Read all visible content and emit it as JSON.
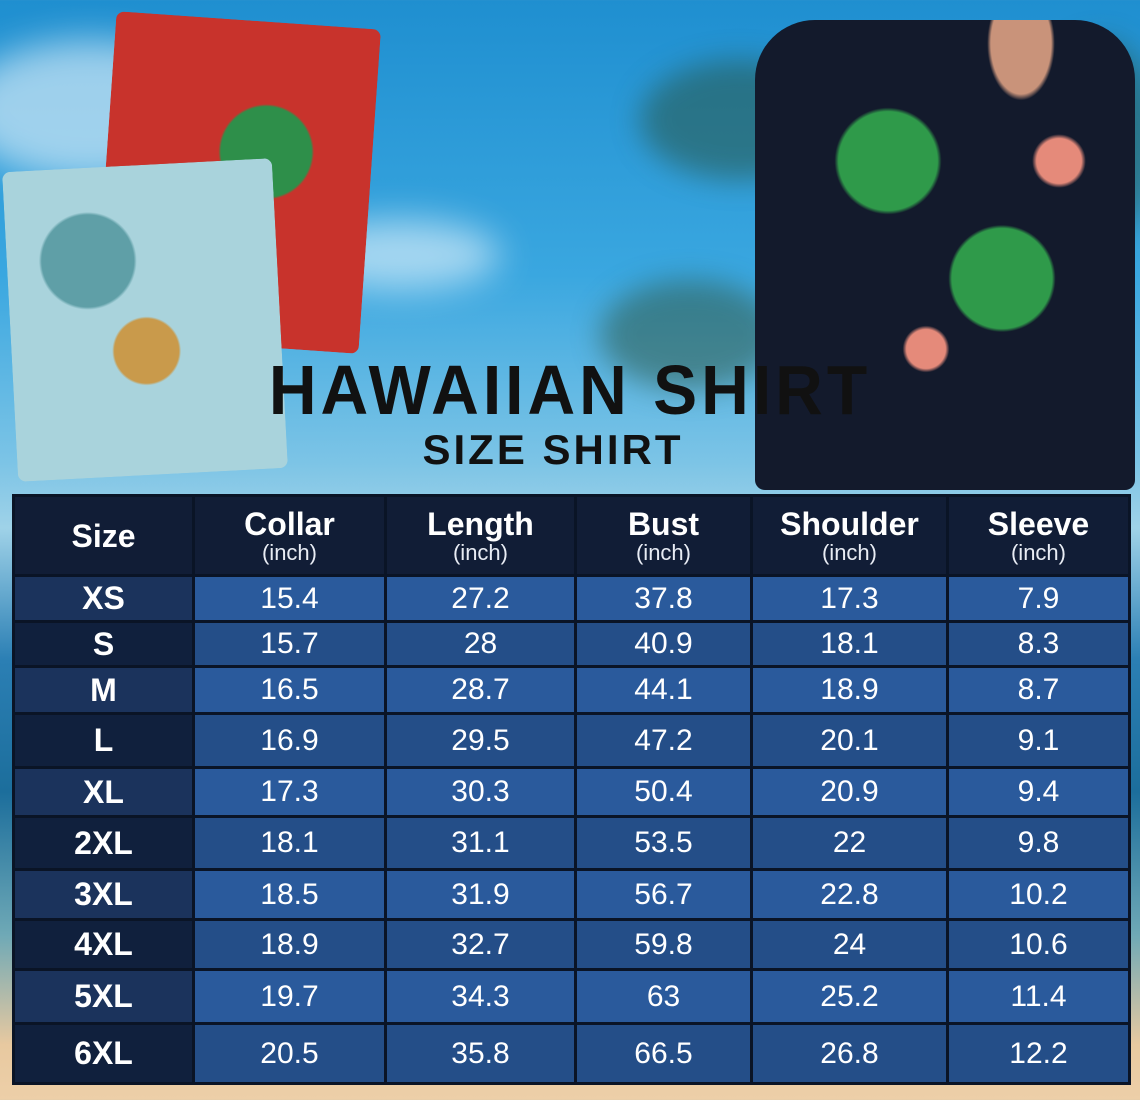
{
  "title": "HAWAIIAN SHIRT",
  "subtitle": "SIZE SHIRT",
  "colors": {
    "header_bg": "#111d36",
    "row_light": "#2a5a9c",
    "row_dark": "#244e88",
    "text": "#ffffff"
  },
  "table": {
    "headers": [
      {
        "label": "Size",
        "unit": ""
      },
      {
        "label": "Collar",
        "unit": "(inch)"
      },
      {
        "label": "Length",
        "unit": "(inch)"
      },
      {
        "label": "Bust",
        "unit": "(inch)"
      },
      {
        "label": "Shoulder",
        "unit": "(inch)"
      },
      {
        "label": "Sleeve",
        "unit": "(inch)"
      }
    ],
    "rows": [
      [
        "XS",
        "15.4",
        "27.2",
        "37.8",
        "17.3",
        "7.9"
      ],
      [
        "S",
        "15.7",
        "28",
        "40.9",
        "18.1",
        "8.3"
      ],
      [
        "M",
        "16.5",
        "28.7",
        "44.1",
        "18.9",
        "8.7"
      ],
      [
        "L",
        "16.9",
        "29.5",
        "47.2",
        "20.1",
        "9.1"
      ],
      [
        "XL",
        "17.3",
        "30.3",
        "50.4",
        "20.9",
        "9.4"
      ],
      [
        "2XL",
        "18.1",
        "31.1",
        "53.5",
        "22",
        "9.8"
      ],
      [
        "3XL",
        "18.5",
        "31.9",
        "56.7",
        "22.8",
        "10.2"
      ],
      [
        "4XL",
        "18.9",
        "32.7",
        "59.8",
        "24",
        "10.6"
      ],
      [
        "5XL",
        "19.7",
        "34.3",
        "63",
        "25.2",
        "11.4"
      ],
      [
        "6XL",
        "20.5",
        "35.8",
        "66.5",
        "26.8",
        "12.2"
      ]
    ]
  }
}
